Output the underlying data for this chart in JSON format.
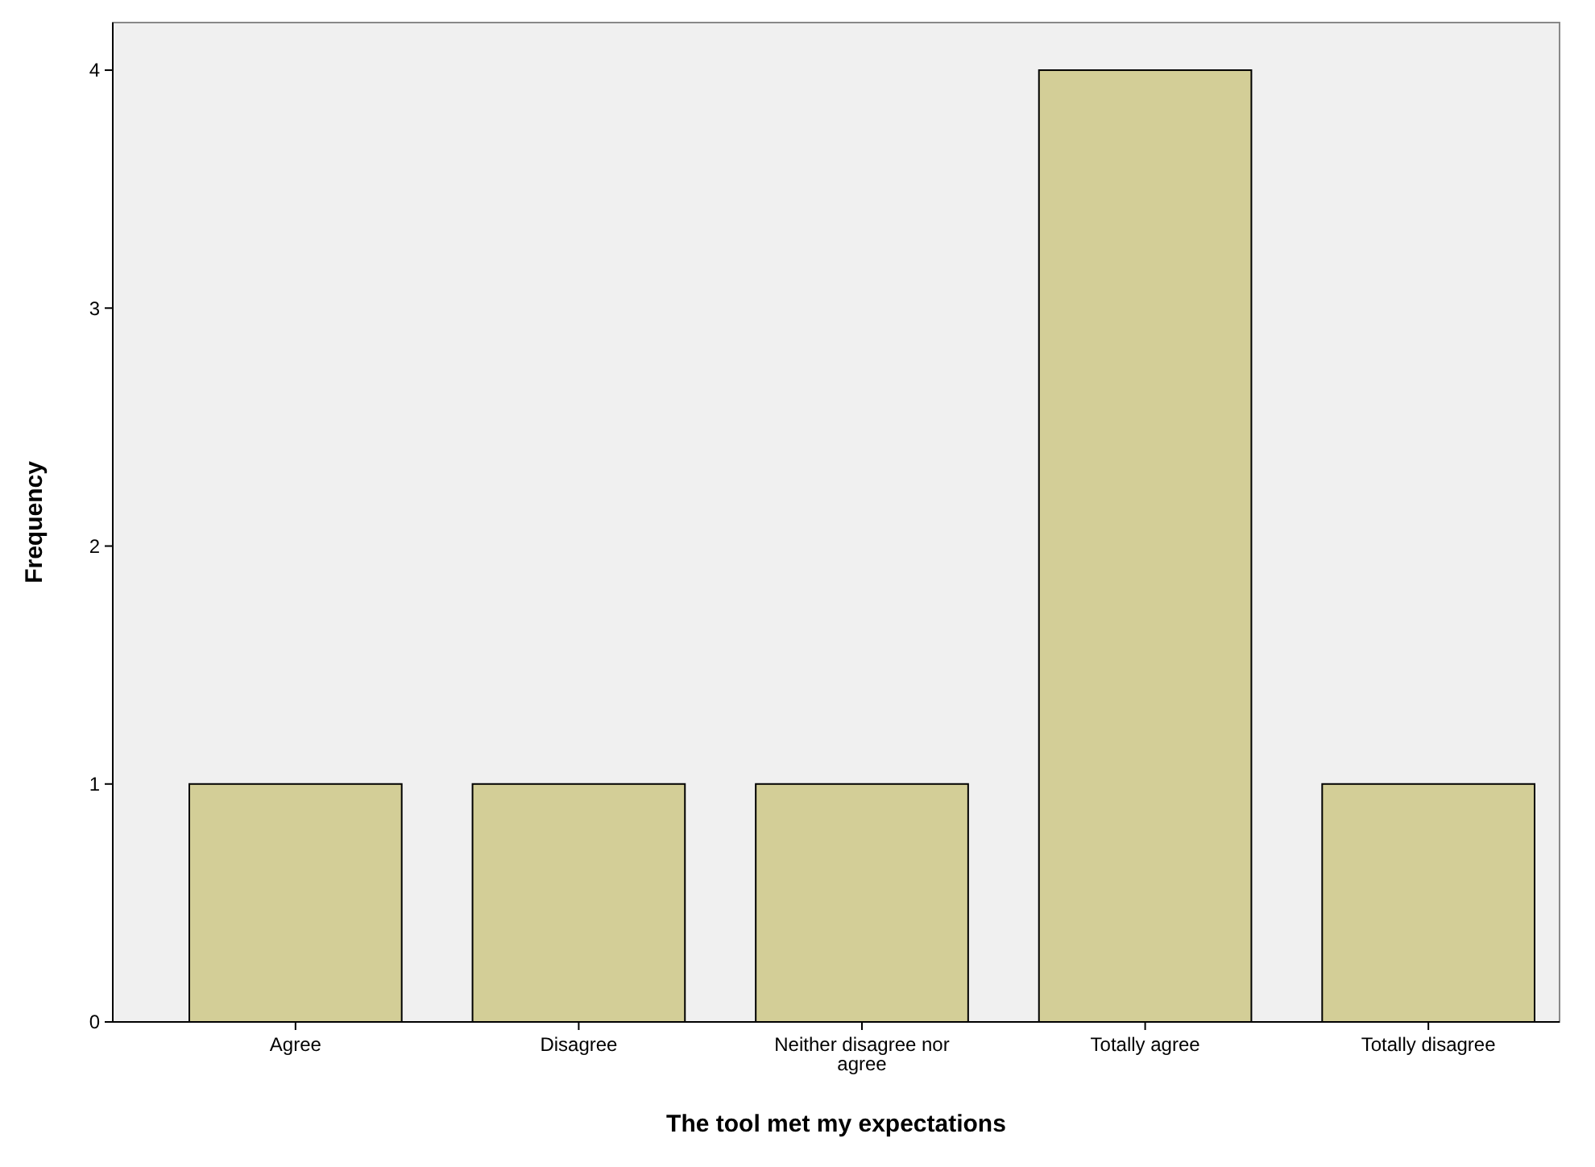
{
  "chart_data": {
    "type": "bar",
    "xlabel": "The tool met my expectations",
    "ylabel": "Frequency",
    "categories": [
      "Agree",
      "Disagree",
      "Neither disagree nor agree",
      "Totally agree",
      "Totally disagree"
    ],
    "values": [
      1,
      1,
      1,
      4,
      1
    ],
    "color": "#d3ce97",
    "ylim": [
      0,
      4.2
    ],
    "yticks": [
      0,
      1,
      2,
      3,
      4
    ]
  }
}
